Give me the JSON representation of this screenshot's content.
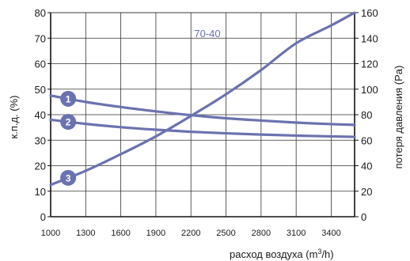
{
  "chart_data": {
    "type": "line",
    "annotation": "70-40",
    "ylabel_left": "к.п.д. (%)",
    "ylabel_right": "потеря давления (Pa)",
    "xlabel_main": "расход воздуха (m",
    "xlabel_sup": "3",
    "xlabel_tail": "/h)",
    "x_ticks": [
      "1000",
      "1300",
      "1600",
      "1900",
      "2200",
      "2500",
      "2800",
      "3100",
      "3400"
    ],
    "y_left_ticks": [
      "0",
      "10",
      "20",
      "30",
      "40",
      "50",
      "60",
      "70",
      "80"
    ],
    "y_right_ticks": [
      "0",
      "20",
      "40",
      "60",
      "80",
      "100",
      "120",
      "140",
      "160"
    ],
    "xlim": [
      1000,
      3600
    ],
    "ylim_left": [
      0,
      80
    ],
    "ylim_right": [
      0,
      160
    ],
    "grid": true,
    "line_color": "#6b72b0",
    "series": [
      {
        "marker": "1",
        "axis": "left",
        "x": [
          1000,
          1300,
          1600,
          1900,
          2200,
          2500,
          2800,
          3100,
          3400,
          3600
        ],
        "y": [
          47.5,
          45.0,
          43.0,
          41.3,
          39.8,
          38.6,
          37.7,
          36.9,
          36.3,
          36.0
        ]
      },
      {
        "marker": "2",
        "axis": "left",
        "x": [
          1000,
          1300,
          1600,
          1900,
          2200,
          2500,
          2800,
          3100,
          3400,
          3600
        ],
        "y": [
          38.0,
          36.4,
          35.1,
          34.1,
          33.3,
          32.7,
          32.2,
          31.8,
          31.5,
          31.3
        ]
      },
      {
        "marker": "3",
        "axis": "right",
        "x": [
          1000,
          1300,
          1600,
          1900,
          2200,
          2500,
          2800,
          3100,
          3400,
          3600
        ],
        "y": [
          25.0,
          36.0,
          49.0,
          63.0,
          79.0,
          96.0,
          115.0,
          136.0,
          150.0,
          160.0
        ]
      }
    ],
    "markers": [
      {
        "label": "1",
        "x": 1150,
        "series": 0
      },
      {
        "label": "2",
        "x": 1150,
        "series": 1
      },
      {
        "label": "3",
        "x": 1150,
        "series": 2
      }
    ]
  }
}
